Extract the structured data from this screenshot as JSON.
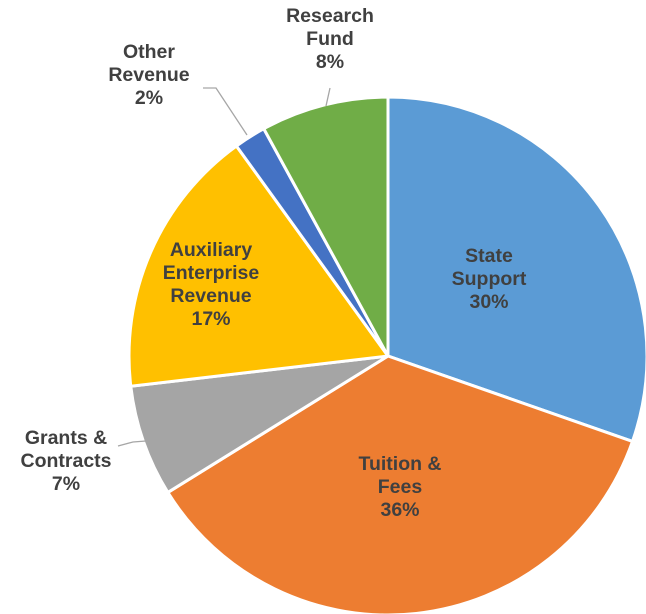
{
  "chart_data": {
    "type": "pie",
    "title": "",
    "start_angle_deg": 0,
    "direction": "clockwise",
    "slices": [
      {
        "label_lines": [
          "State",
          "Support"
        ],
        "percent_label": "30%",
        "value": 30.5,
        "color": "#5b9bd5"
      },
      {
        "label_lines": [
          "Tuition &",
          "Fees"
        ],
        "percent_label": "36%",
        "value": 36,
        "color": "#ed7d31"
      },
      {
        "label_lines": [
          "Grants &",
          "Contracts"
        ],
        "percent_label": "7%",
        "value": 7,
        "color": "#a5a5a5"
      },
      {
        "label_lines": [
          "Auxiliary",
          "Enterprise",
          "Revenue"
        ],
        "percent_label": "17%",
        "value": 17,
        "color": "#ffc000"
      },
      {
        "label_lines": [
          "Other",
          "Revenue"
        ],
        "percent_label": "2%",
        "value": 2,
        "color": "#4472c4"
      },
      {
        "label_lines": [
          "Research",
          "Fund"
        ],
        "percent_label": "8%",
        "value": 8,
        "color": "#70ad47"
      }
    ]
  }
}
